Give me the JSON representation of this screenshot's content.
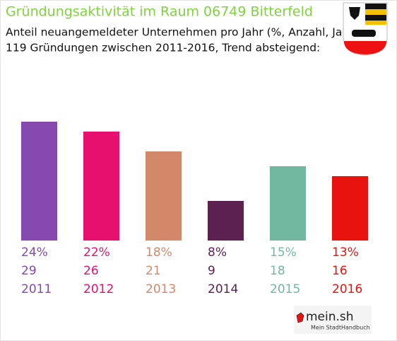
{
  "chart_data": {
    "type": "bar",
    "title": "Gründungsaktivität im Raum 06749 Bitterfeld",
    "subtitle": [
      "Anteil neuangemeldeter Unternehmen pro Jahr (%, Anzahl, Jahr)",
      "119 Gründungen zwischen 2011-2016, Trend absteigend:"
    ],
    "categories": [
      "2011",
      "2012",
      "2013",
      "2014",
      "2015",
      "2016"
    ],
    "values": [
      24,
      22,
      18,
      8,
      15,
      13
    ],
    "value_labels": [
      "24%",
      "22%",
      "18%",
      "8%",
      "15%",
      "13%"
    ],
    "counts": [
      29,
      26,
      21,
      9,
      18,
      16
    ],
    "colors": [
      "#8549b0",
      "#e8106f",
      "#d4886a",
      "#5c2150",
      "#72b8a0",
      "#e8130f"
    ]
  },
  "footer": {
    "brand": "mein.sh",
    "tagline": "Mein StadtHandbuch"
  }
}
